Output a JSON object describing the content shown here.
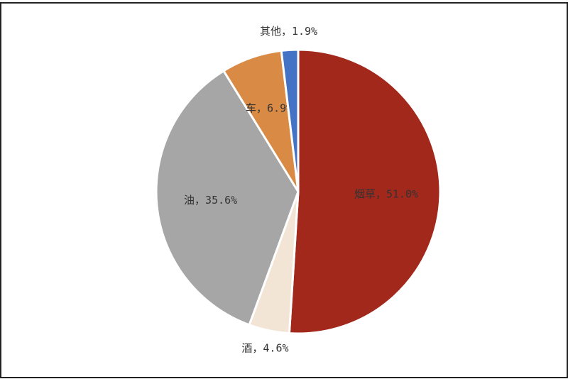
{
  "chart_data": {
    "type": "pie",
    "labels": [
      "烟草，51.0%",
      "酒，4.6%",
      "油，35.6%",
      "车，6.9%",
      "其他，1.9%"
    ],
    "values": [
      51.0,
      4.6,
      35.6,
      6.9,
      1.9
    ],
    "colors": [
      "#a3281c",
      "#f3e5d6",
      "#a6a6a6",
      "#d98a45",
      "#4472c4"
    ]
  }
}
